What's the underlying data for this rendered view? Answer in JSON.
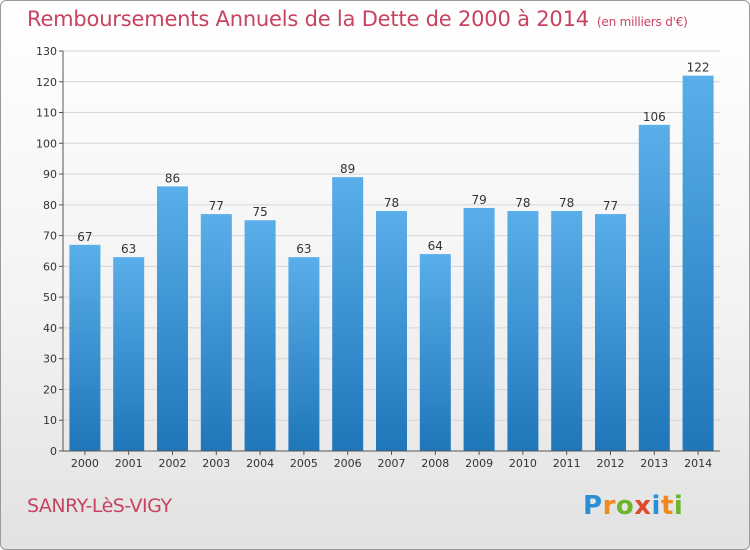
{
  "header": {
    "title": "Remboursements Annuels de la Dette de 2000 à 2014",
    "unit": "(en milliers d'€)"
  },
  "footer": {
    "commune": "SANRY-LèS-VIGY",
    "logo": {
      "letters": [
        "P",
        "r",
        "o",
        "x",
        "i",
        "t",
        "i"
      ],
      "colors": [
        "#2b8fd6",
        "#f08a1c",
        "#6cb52c",
        "#e04a2a",
        "#2b8fd6",
        "#f08a1c",
        "#6cb52c"
      ]
    }
  },
  "colors": {
    "accent": "#c8435f",
    "bar_top": "#5aaeea",
    "bar_bottom": "#1f76b8",
    "grid": "#d6d6d6",
    "axis": "#555555"
  },
  "chart_data": {
    "type": "bar",
    "categories": [
      "2000",
      "2001",
      "2002",
      "2003",
      "2004",
      "2005",
      "2006",
      "2007",
      "2008",
      "2009",
      "2010",
      "2011",
      "2012",
      "2013",
      "2014"
    ],
    "values": [
      67,
      63,
      86,
      77,
      75,
      63,
      89,
      78,
      64,
      79,
      78,
      78,
      77,
      106,
      122
    ],
    "title": "Remboursements Annuels de la Dette de 2000 à 2014",
    "xlabel": "",
    "ylabel": "",
    "ylim": [
      0,
      130
    ],
    "yticks": [
      0,
      10,
      20,
      30,
      40,
      50,
      60,
      70,
      80,
      90,
      100,
      110,
      120,
      130
    ],
    "grid": true,
    "legend": "none"
  }
}
